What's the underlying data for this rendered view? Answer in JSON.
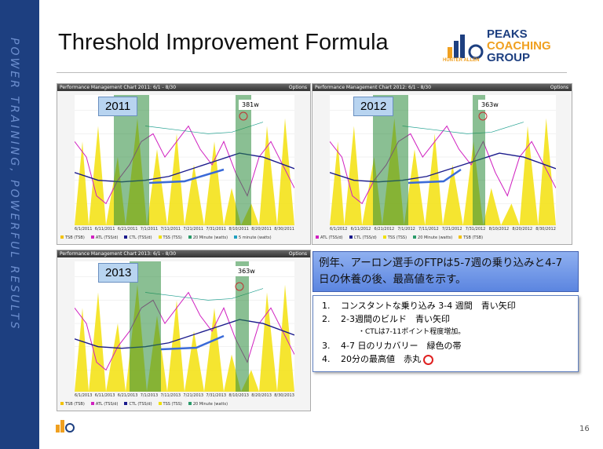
{
  "sidebar_text": "POWER TRAINING, POWERFUL RESULTS",
  "title": "Threshold Improvement Formula",
  "logo": {
    "line1": "PEAKS",
    "line2": "COACHING",
    "line3": "GROUP",
    "tagline": "HUNTER ALLEN"
  },
  "panels": [
    {
      "header": "Performance Management Chart 2011: 6/1 - 8/30",
      "options": "Options",
      "year": "2011",
      "peak_label": "381w",
      "dates": [
        "6/1/2011",
        "6/11/2011",
        "6/21/2011",
        "7/1/2011",
        "7/11/2011",
        "7/21/2011",
        "7/31/2011",
        "8/10/2011",
        "8/20/2011",
        "8/30/2011"
      ],
      "legend": [
        {
          "name": "TSB (TSB)",
          "color": "#f2c200"
        },
        {
          "name": "ATL (TSS/d)",
          "color": "#d020c0"
        },
        {
          "name": "CTL (TSS/d)",
          "color": "#1a1a8c"
        },
        {
          "name": "TSS (TSS)",
          "color": "#f0e000"
        },
        {
          "name": "20 Minute (watts)",
          "color": "#2a9a6a"
        },
        {
          "name": "5 minute (watts)",
          "color": "#20a0c0"
        }
      ]
    },
    {
      "header": "Performance Management Chart 2012: 6/1 - 8/30",
      "options": "Options",
      "year": "2012",
      "peak_label": "363w",
      "dates": [
        "6/1/2012",
        "6/11/2012",
        "6/21/2012",
        "7/1/2012",
        "7/11/2012",
        "7/21/2012",
        "7/31/2012",
        "8/10/2012",
        "8/20/2012",
        "8/30/2012"
      ],
      "legend": [
        {
          "name": "ATL (TSS/d)",
          "color": "#d020c0"
        },
        {
          "name": "CTL (TSS/d)",
          "color": "#1a1a8c"
        },
        {
          "name": "TSS (TSS)",
          "color": "#f0e000"
        },
        {
          "name": "20 Minute (watts)",
          "color": "#2a9a6a"
        },
        {
          "name": "TSB (TSB)",
          "color": "#f2c200"
        }
      ]
    },
    {
      "header": "Performance Management Chart 2013: 6/1 - 8/30",
      "options": "Options",
      "year": "2013",
      "peak_label": "363w",
      "dates": [
        "6/1/2013",
        "6/11/2013",
        "6/21/2013",
        "7/1/2013",
        "7/11/2013",
        "7/21/2013",
        "7/31/2013",
        "8/10/2013",
        "8/20/2013",
        "8/30/2013"
      ],
      "legend": [
        {
          "name": "TSB (TSB)",
          "color": "#f2c200"
        },
        {
          "name": "ATL (TSS/d)",
          "color": "#d020c0"
        },
        {
          "name": "CTL (TSS/d)",
          "color": "#1a1a8c"
        },
        {
          "name": "TSS (TSS)",
          "color": "#f0e000"
        },
        {
          "name": "20 Minute (watts)",
          "color": "#2a9a6a"
        }
      ]
    }
  ],
  "callout": "例年、アーロン選手のFTPは5-7週の乗り込みと4-7日の休養の後、最高値を示す。",
  "list": [
    {
      "num": "1.",
      "text": "コンスタントな乗り込み 3-4 週間　青い矢印"
    },
    {
      "num": "2.",
      "text": "2-3週間のビルド　青い矢印"
    },
    {
      "num": "",
      "text": "・CTLは7-11ポイント程度増加。"
    },
    {
      "num": "3.",
      "text": "4-7 日のリカバリー　緑色の帯"
    },
    {
      "num": "4.",
      "text": "20分の最高値　赤丸"
    }
  ],
  "page_number": "16"
}
